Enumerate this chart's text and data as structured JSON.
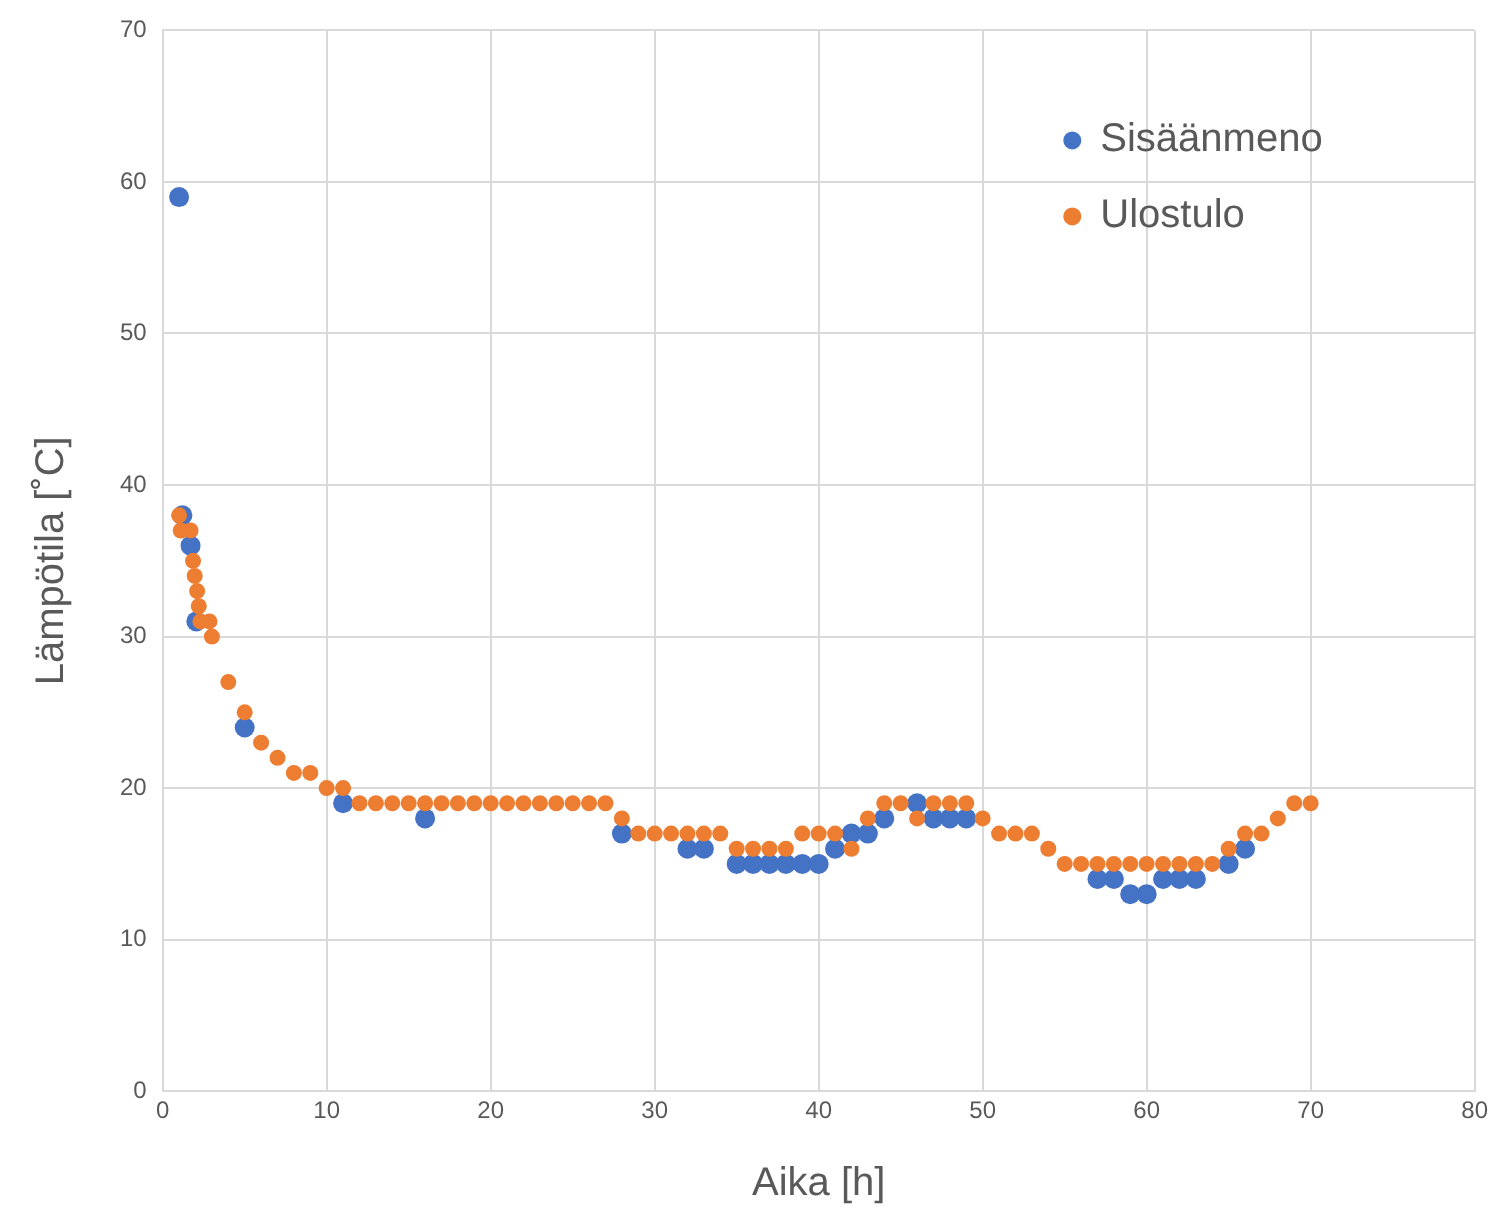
{
  "chart_data": {
    "type": "scatter",
    "xlabel": "Aika [h]",
    "ylabel": "Lämpötila [˚C]",
    "xlim": [
      0,
      80
    ],
    "xticks": [
      0,
      10,
      20,
      30,
      40,
      50,
      60,
      70,
      80
    ],
    "ylim": [
      0,
      70
    ],
    "yticks": [
      0,
      10,
      20,
      30,
      40,
      50,
      60,
      70
    ],
    "grid": true,
    "legend": "top right",
    "marker": "circle",
    "series": [
      {
        "name": "Sisäänmeno",
        "color": "#4472c4",
        "x": [
          1,
          1.2,
          1.7,
          2.05,
          5,
          11,
          16,
          28,
          32,
          33,
          35,
          36,
          37,
          38,
          39,
          40,
          41,
          42,
          43,
          44,
          46,
          47,
          48,
          49,
          57,
          58,
          59,
          60,
          61,
          62,
          63,
          65,
          66
        ],
        "values": [
          59,
          38,
          36,
          31,
          24,
          19,
          18,
          17,
          16,
          16,
          15,
          15,
          15,
          15,
          15,
          15,
          16,
          17,
          17,
          18,
          19,
          18,
          18,
          18,
          14,
          14,
          13,
          13,
          14,
          14,
          14,
          15,
          16
        ]
      },
      {
        "name": "Ulostulo",
        "color": "#ed7d31",
        "x": [
          1,
          1.1,
          1.7,
          1.85,
          1.95,
          2.1,
          2.2,
          2.3,
          2.85,
          3,
          4,
          5,
          6,
          7,
          8,
          9,
          10,
          11,
          12,
          13,
          14,
          15,
          16,
          17,
          18,
          19,
          20,
          21,
          22,
          23,
          24,
          25,
          26,
          27,
          28,
          29,
          30,
          31,
          32,
          33,
          34,
          35,
          36,
          37,
          38,
          39,
          40,
          41,
          42,
          43,
          44,
          45,
          46,
          47,
          48,
          49,
          50,
          51,
          52,
          53,
          54,
          55,
          56,
          57,
          58,
          59,
          60,
          61,
          62,
          63,
          64,
          65,
          66,
          67,
          68,
          69,
          70
        ],
        "values": [
          38,
          37,
          37,
          35,
          34,
          33,
          32,
          31,
          31,
          30,
          27,
          25,
          23,
          22,
          21,
          21,
          20,
          20,
          19,
          19,
          19,
          19,
          19,
          19,
          19,
          19,
          19,
          19,
          19,
          19,
          19,
          19,
          19,
          19,
          18,
          17,
          17,
          17,
          17,
          17,
          17,
          16,
          16,
          16,
          16,
          17,
          17,
          17,
          16,
          18,
          19,
          19,
          18,
          19,
          19,
          19,
          18,
          17,
          17,
          17,
          16,
          15,
          15,
          15,
          15,
          15,
          15,
          15,
          15,
          15,
          15,
          16,
          17,
          17,
          18,
          19,
          19
        ]
      }
    ]
  }
}
